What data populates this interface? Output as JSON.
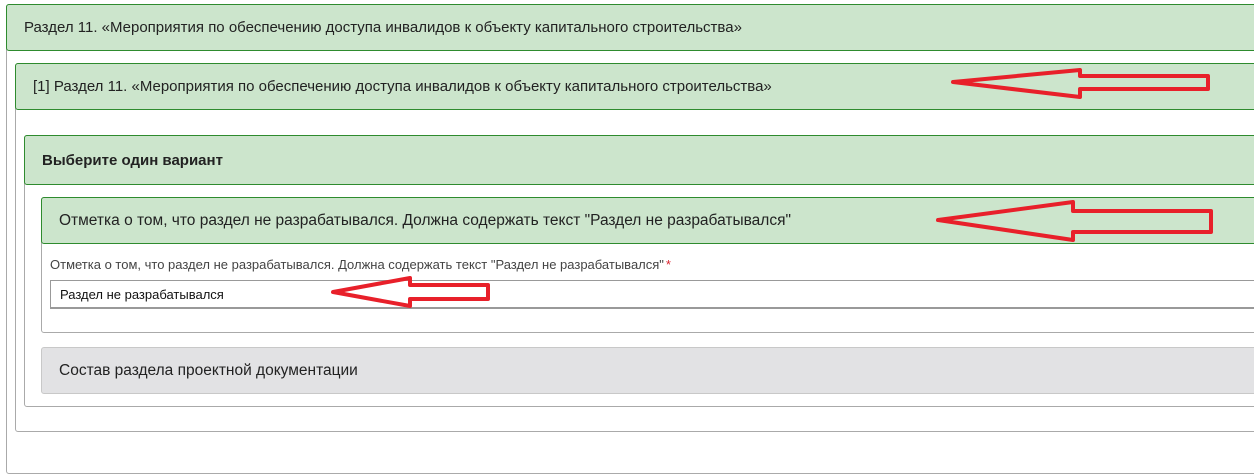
{
  "section": {
    "title": "Раздел 11. «Мероприятия по обеспечению доступа инвалидов к объекту капитального строительства»",
    "item": {
      "title": "[1] Раздел 11. «Мероприятия по обеспечению доступа инвалидов к объекту капитального строительства»",
      "choice": {
        "title": "Выберите один вариант",
        "option": {
          "title": "Отметка о том, что раздел не разрабатывался. Должна содержать текст \"Раздел не разрабатывался\"",
          "field_label": "Отметка о том, что раздел не разрабатывался. Должна содержать текст \"Раздел не разрабатывался\"",
          "required_mark": "*",
          "field_value": "Раздел не разрабатывался"
        },
        "composition": {
          "title": "Состав раздела проектной документации"
        }
      }
    }
  },
  "colors": {
    "panel_green": "#cce5cc",
    "panel_border": "#2e8b2e",
    "annotation_red": "#e8202a",
    "required": "#d9232e"
  },
  "annotations": {
    "icons": [
      "arrow-left-icon",
      "arrow-left-icon",
      "arrow-left-icon"
    ]
  }
}
